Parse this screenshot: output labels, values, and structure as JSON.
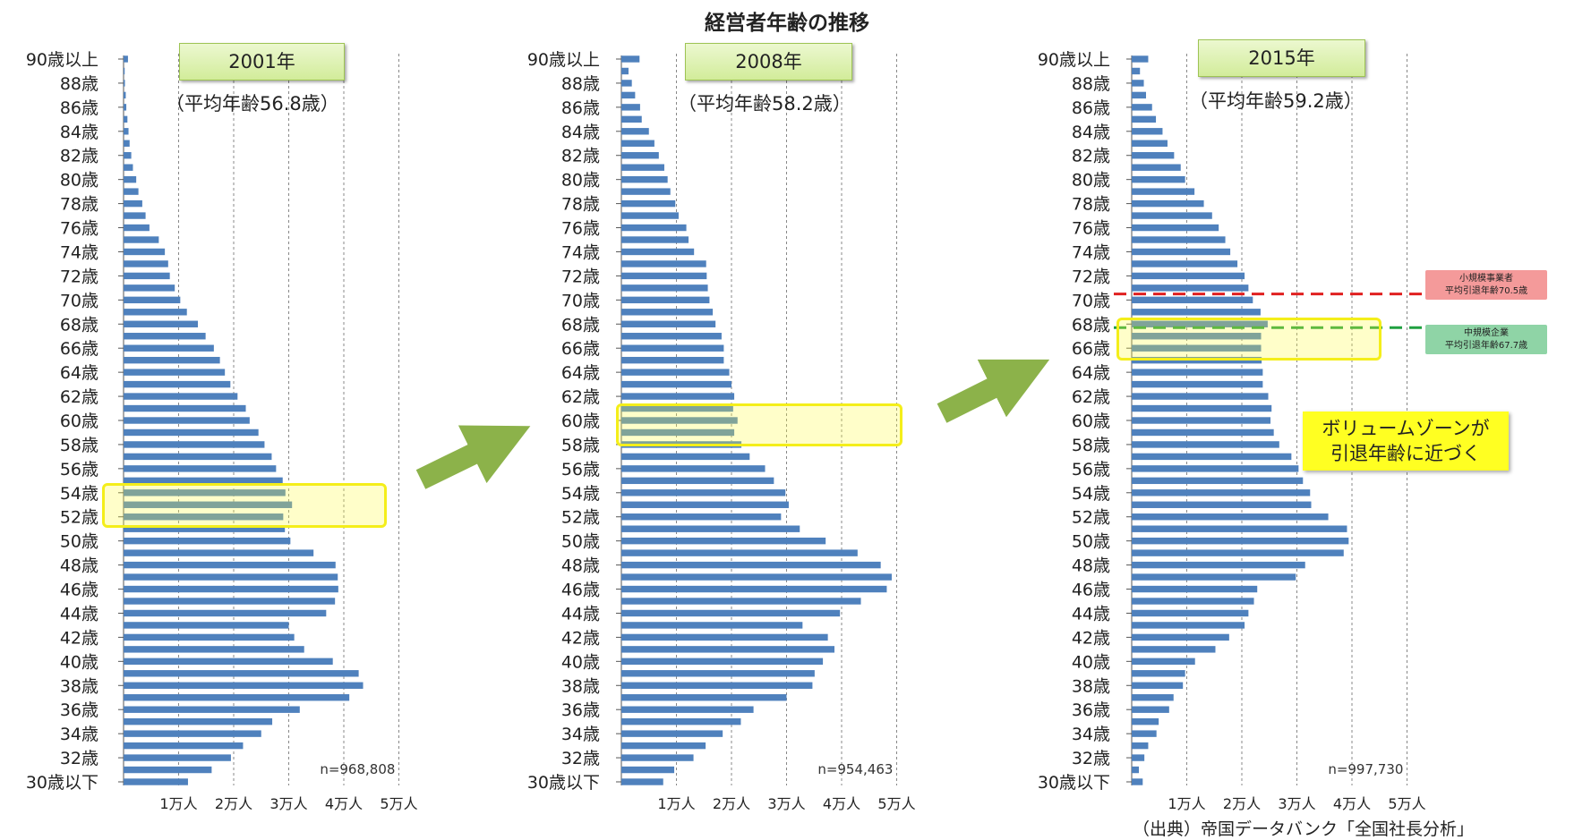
{
  "title": "経営者年齢の推移",
  "source": "（出典）帝国データバンク「全国社長分析」",
  "note_lines": [
    "ボリュームゾーンが",
    "引退年齢に近づく"
  ],
  "retirement_markers": {
    "small": {
      "line1": "小規模事業者",
      "line2": "平均引退年齢70.5歳",
      "age": 70.5,
      "color": "#e02020"
    },
    "mid": {
      "line1": "中規模企業",
      "line2": "平均引退年齢67.7歳",
      "age": 67.7,
      "color": "#20a040"
    }
  },
  "colors": {
    "bar": "#4f81bd",
    "highlight": "#f4ee1a",
    "arrow": "#8cb24a"
  },
  "chart_data": [
    {
      "type": "bar",
      "orientation": "horizontal",
      "year_label": "2001年",
      "avg_label": "（平均年齢56.8歳）",
      "n_label": "n=968,808",
      "highlight_ages": [
        52,
        54
      ],
      "ylabels": [
        "90歳以上",
        "88歳",
        "86歳",
        "84歳",
        "82歳",
        "80歳",
        "78歳",
        "76歳",
        "74歳",
        "72歳",
        "70歳",
        "68歳",
        "66歳",
        "64歳",
        "62歳",
        "60歳",
        "58歳",
        "56歳",
        "54歳",
        "52歳",
        "50歳",
        "48歳",
        "46歳",
        "44歳",
        "42歳",
        "40歳",
        "38歳",
        "36歳",
        "34歳",
        "32歳",
        "30歳以下"
      ],
      "xtick_labels": [
        "1万人",
        "2万人",
        "3万人",
        "4万人",
        "5万人"
      ],
      "xlim": [
        0,
        50000
      ],
      "values": [
        800,
        200,
        250,
        400,
        500,
        700,
        900,
        1100,
        1400,
        1700,
        2300,
        2700,
        3400,
        4000,
        4700,
        6400,
        7500,
        8100,
        8400,
        9300,
        10300,
        11500,
        13500,
        14900,
        16400,
        17500,
        18400,
        19400,
        20700,
        22200,
        22900,
        24500,
        25600,
        26900,
        27700,
        28900,
        29400,
        30600,
        29000,
        29300,
        30300,
        34500,
        38500,
        38900,
        39000,
        38400,
        36800,
        30000,
        31000,
        32800,
        38000,
        42700,
        43500,
        41000,
        32000,
        27000,
        25000,
        21700,
        19500,
        16000,
        11700
      ]
    },
    {
      "type": "bar",
      "orientation": "horizontal",
      "year_label": "2008年",
      "avg_label": "（平均年齢58.2歳）",
      "n_label": "n=954,463",
      "highlight_ages": [
        60
      ],
      "ylabels": [
        "90歳以上",
        "88歳",
        "86歳",
        "84歳",
        "82歳",
        "80歳",
        "78歳",
        "76歳",
        "74歳",
        "72歳",
        "70歳",
        "68歳",
        "66歳",
        "64歳",
        "62歳",
        "60歳",
        "58歳",
        "56歳",
        "54歳",
        "52歳",
        "50歳",
        "48歳",
        "46歳",
        "44歳",
        "42歳",
        "40歳",
        "38歳",
        "36歳",
        "34歳",
        "32歳",
        "30歳以下"
      ],
      "xtick_labels": [
        "1万人",
        "2万人",
        "3万人",
        "4万人",
        "5万人"
      ],
      "xlim": [
        0,
        50000
      ],
      "values": [
        3300,
        1300,
        1900,
        2500,
        3400,
        3700,
        5000,
        6000,
        6800,
        7800,
        8400,
        8900,
        9800,
        10400,
        11800,
        12200,
        13200,
        15400,
        15500,
        15700,
        16000,
        16600,
        17100,
        18200,
        18600,
        18600,
        19600,
        20000,
        20500,
        20300,
        21100,
        20500,
        21800,
        23300,
        26100,
        27700,
        29800,
        30400,
        29000,
        32400,
        37100,
        42900,
        47100,
        49100,
        48200,
        43500,
        39700,
        32900,
        37500,
        38700,
        36600,
        35100,
        34700,
        30000,
        24000,
        21700,
        18400,
        15300,
        13100,
        9600,
        7600
      ]
    },
    {
      "type": "bar",
      "orientation": "horizontal",
      "year_label": "2015年",
      "avg_label": "（平均年齢59.2歳）",
      "n_label": "n=997,730",
      "highlight_ages": [
        66,
        68
      ],
      "ylabels": [
        "90歳以上",
        "88歳",
        "86歳",
        "84歳",
        "82歳",
        "80歳",
        "78歳",
        "76歳",
        "74歳",
        "72歳",
        "70歳",
        "68歳",
        "66歳",
        "64歳",
        "62歳",
        "60歳",
        "58歳",
        "56歳",
        "54歳",
        "52歳",
        "50歳",
        "48歳",
        "46歳",
        "44歳",
        "42歳",
        "40歳",
        "38歳",
        "36歳",
        "34歳",
        "32歳",
        "30歳以下"
      ],
      "xtick_labels": [
        "1万人",
        "2万人",
        "3万人",
        "4万人",
        "5万人"
      ],
      "xlim": [
        0,
        50000
      ],
      "values": [
        3000,
        1500,
        2200,
        2600,
        3700,
        4400,
        5600,
        6500,
        7700,
        8900,
        9700,
        11400,
        13100,
        14600,
        15800,
        17000,
        17900,
        19200,
        20500,
        21200,
        22000,
        23400,
        24700,
        23500,
        23500,
        23600,
        23800,
        23800,
        24800,
        25400,
        25200,
        25800,
        26800,
        29000,
        30300,
        31100,
        32400,
        32600,
        35700,
        39100,
        39400,
        38500,
        31500,
        29800,
        22800,
        22200,
        21200,
        20500,
        17700,
        15200,
        11500,
        9700,
        9300,
        7600,
        6800,
        4900,
        4500,
        3000,
        2300,
        1300,
        2000
      ]
    }
  ]
}
